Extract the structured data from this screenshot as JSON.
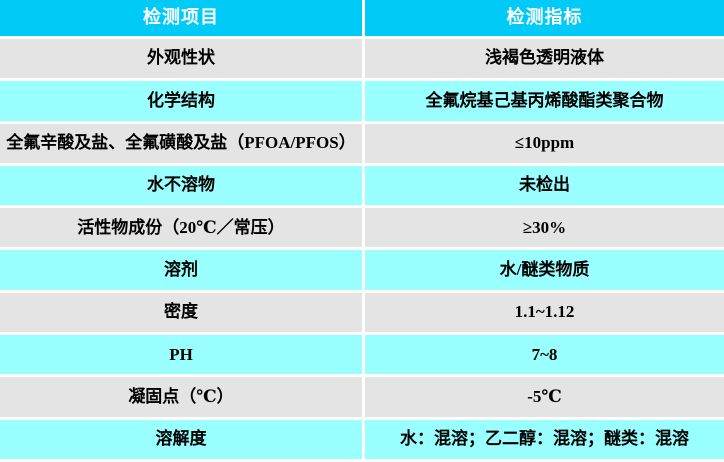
{
  "table": {
    "columns": [
      {
        "label": "检测项目"
      },
      {
        "label": "检测指标"
      }
    ],
    "rows": [
      {
        "item": "外观性状",
        "value": "浅褐色透明液体"
      },
      {
        "item": "化学结构",
        "value": "全氟烷基己基丙烯酸酯类聚合物"
      },
      {
        "item": "全氟辛酸及盐、全氟磺酸及盐（PFOA/PFOS）",
        "value": "≤10ppm"
      },
      {
        "item": "水不溶物",
        "value": "未检出"
      },
      {
        "item": "活性物成份（20℃／常压）",
        "value": "≥30%"
      },
      {
        "item": "溶剂",
        "value": "水/醚类物质"
      },
      {
        "item": "密度",
        "value": "1.1~1.12"
      },
      {
        "item": "PH",
        "value": "7~8"
      },
      {
        "item": "凝固点（℃）",
        "value": "-5℃"
      },
      {
        "item": "溶解度",
        "value": "水：混溶；乙二醇：混溶；醚类：混溶"
      }
    ]
  },
  "colors": {
    "header_bg": "#00cbf8",
    "header_text": "#ffffff",
    "row_gray": "#e4e4e4",
    "row_cyan": "#99ffff",
    "divider": "#ffffff",
    "body_text": "#000000"
  }
}
